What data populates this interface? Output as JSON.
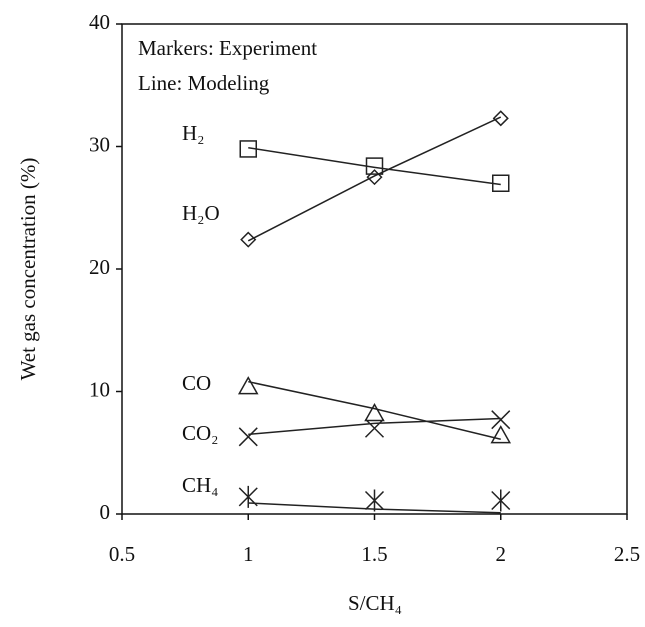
{
  "chart_data": {
    "type": "line",
    "annotations": [
      "Markers: Experiment",
      "Line: Modeling"
    ],
    "x_label": "S/CH₄",
    "y_label": "Wet gas concentration (%)",
    "x": [
      1,
      1.5,
      2
    ],
    "xlim": [
      0.5,
      2.5
    ],
    "xticks": [
      0.5,
      1,
      1.5,
      2,
      2.5
    ],
    "ylim": [
      0,
      40
    ],
    "yticks": [
      0,
      10,
      20,
      30,
      40
    ],
    "series": [
      {
        "name": "H₂",
        "marker": "square",
        "color": "#222222",
        "values": [
          29.8,
          28.4,
          27.0
        ],
        "model": [
          29.9,
          28.3,
          26.9
        ]
      },
      {
        "name": "H₂O",
        "marker": "diamond",
        "color": "#222222",
        "values": [
          22.4,
          27.5,
          32.3
        ],
        "model": [
          22.3,
          27.6,
          32.4
        ]
      },
      {
        "name": "CO",
        "marker": "triangle",
        "color": "#222222",
        "values": [
          10.4,
          8.2,
          6.4
        ],
        "model": [
          10.8,
          8.6,
          6.1
        ]
      },
      {
        "name": "CO₂",
        "marker": "x",
        "color": "#222222",
        "values": [
          6.3,
          7.0,
          7.7
        ],
        "model": [
          6.5,
          7.4,
          7.8
        ]
      },
      {
        "name": "CH₄",
        "marker": "asterisk",
        "color": "#222222",
        "values": [
          1.4,
          1.1,
          1.1
        ],
        "model": [
          0.9,
          0.4,
          0.1
        ]
      }
    ]
  }
}
